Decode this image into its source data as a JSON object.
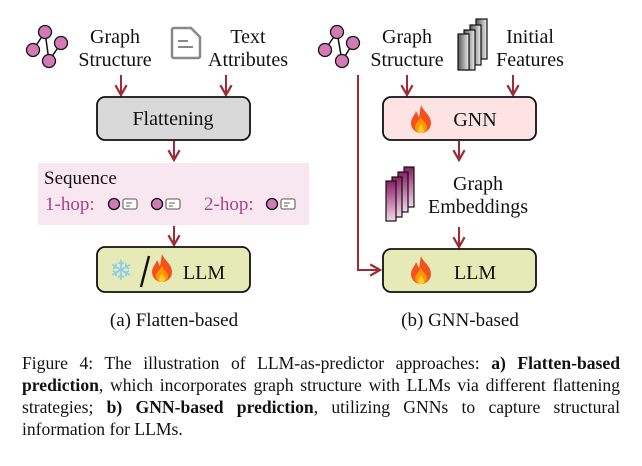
{
  "panel_a": {
    "graph_label_1": "Graph",
    "graph_label_2": "Structure",
    "text_label_1": "Text",
    "text_label_2": "Attributes",
    "flattening": "Flattening",
    "sequence": "Sequence",
    "hop1": "1-hop:",
    "hop2": "2-hop:",
    "llm": "LLM",
    "caption": "(a) Flatten-based"
  },
  "panel_b": {
    "graph_label_1": "Graph",
    "graph_label_2": "Structure",
    "features_label_1": "Initial",
    "features_label_2": "Features",
    "gnn": "GNN",
    "emb_label_1": "Graph",
    "emb_label_2": "Embeddings",
    "llm": "LLM",
    "caption": "(b) GNN-based"
  },
  "figure_caption": {
    "prefix": "Figure 4:  The illustration of LLM-as-predictor approaches: ",
    "a_bold": "a) Flatten-based prediction",
    "a_text": ", which incorporates graph structure with LLMs via different flattening strategies; ",
    "b_bold": "b) GNN-based prediction",
    "b_text": ", utilizing GNNs to capture structural information for LLMs."
  },
  "colors": {
    "arrow": "#9e2a33",
    "node": "#d27ab3",
    "flatten_box": "#d9d9d9",
    "sequence_bg": "#f8e6f0",
    "hop_text": "#a8457f",
    "llm_box": "#e6eab7",
    "gnn_box": "#fde3e3"
  },
  "icons": [
    "graph-icon",
    "document-icon",
    "feature-stack-icon",
    "embedding-stack-icon",
    "snowflake-icon",
    "flame-icon"
  ]
}
